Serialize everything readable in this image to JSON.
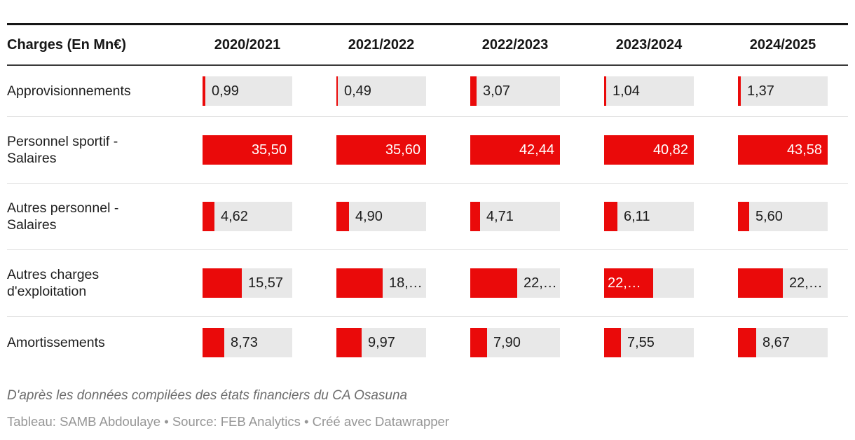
{
  "colors": {
    "bar_red": "#ea0a0a",
    "cell_bg": "#e8e8e8",
    "text_dark": "#1d1d1d",
    "text_white": "#ffffff",
    "rule_top": "#161616",
    "separator": "#dedede"
  },
  "table": {
    "header": {
      "label": "Charges (En Mn€)",
      "columns": [
        "2020/2021",
        "2021/2022",
        "2022/2023",
        "2023/2024",
        "2024/2025"
      ]
    },
    "rows": [
      {
        "label": "Approvisionnements",
        "cells": [
          {
            "text": "0,99",
            "bar": 4,
            "pos": "after"
          },
          {
            "text": "0,49",
            "bar": 2,
            "pos": "after"
          },
          {
            "text": "3,07",
            "bar": 9,
            "pos": "after"
          },
          {
            "text": "1,04",
            "bar": 3,
            "pos": "after"
          },
          {
            "text": "1,37",
            "bar": 4,
            "pos": "after"
          }
        ]
      },
      {
        "label": "Personnel sportif - Salaires",
        "cells": [
          {
            "text": "35,50",
            "bar": 128,
            "pos": "inside-right"
          },
          {
            "text": "35,60",
            "bar": 128,
            "pos": "inside-right"
          },
          {
            "text": "42,44",
            "bar": 128,
            "pos": "inside-right"
          },
          {
            "text": "40,82",
            "bar": 128,
            "pos": "inside-right"
          },
          {
            "text": "43,58",
            "bar": 128,
            "pos": "inside-right"
          }
        ]
      },
      {
        "label": "Autres personnel - Salaires",
        "cells": [
          {
            "text": "4,62",
            "bar": 17,
            "pos": "after"
          },
          {
            "text": "4,90",
            "bar": 18,
            "pos": "after"
          },
          {
            "text": "4,71",
            "bar": 14,
            "pos": "after"
          },
          {
            "text": "6,11",
            "bar": 19,
            "pos": "after"
          },
          {
            "text": "5,60",
            "bar": 16,
            "pos": "after"
          }
        ]
      },
      {
        "label": "Autres charges d'exploitation",
        "cells": [
          {
            "text": "15,57",
            "bar": 56,
            "pos": "after"
          },
          {
            "text": "18,…",
            "bar": 66,
            "pos": "after"
          },
          {
            "text": "22,…",
            "bar": 67,
            "pos": "after"
          },
          {
            "text": "22,…",
            "bar": 70,
            "pos": "inside-left"
          },
          {
            "text": "22,…",
            "bar": 64,
            "pos": "after"
          }
        ]
      },
      {
        "label": "Amortissements",
        "cells": [
          {
            "text": "8,73",
            "bar": 31,
            "pos": "after"
          },
          {
            "text": "9,97",
            "bar": 36,
            "pos": "after"
          },
          {
            "text": "7,90",
            "bar": 24,
            "pos": "after"
          },
          {
            "text": "7,55",
            "bar": 24,
            "pos": "after"
          },
          {
            "text": "8,67",
            "bar": 26,
            "pos": "after"
          }
        ]
      }
    ]
  },
  "notes": "D'après les données compilées des états financiers du CA Osasuna",
  "byline": "Tableau: SAMB Abdoulaye • Source: FEB Analytics • Créé avec Datawrapper",
  "chart_data": {
    "type": "bar",
    "title": "Charges (En Mn€)",
    "categories": [
      "2020/2021",
      "2021/2022",
      "2022/2023",
      "2023/2024",
      "2024/2025"
    ],
    "series": [
      {
        "name": "Approvisionnements",
        "values": [
          0.99,
          0.49,
          3.07,
          1.04,
          1.37
        ]
      },
      {
        "name": "Personnel sportif - Salaires",
        "values": [
          35.5,
          35.6,
          42.44,
          40.82,
          43.58
        ]
      },
      {
        "name": "Autres personnel - Salaires",
        "values": [
          4.62,
          4.9,
          4.71,
          6.11,
          5.6
        ]
      },
      {
        "name": "Autres charges d'exploitation",
        "values": [
          15.57,
          "18,…",
          "22,…",
          "22,…",
          "22,…"
        ]
      },
      {
        "name": "Amortissements",
        "values": [
          8.73,
          9.97,
          7.9,
          7.55,
          8.67
        ]
      }
    ],
    "bar_color": "#ea0a0a",
    "scale_note": "each season column scaled independently; column max fills full cell width",
    "legend_position": "none",
    "grid": false
  }
}
